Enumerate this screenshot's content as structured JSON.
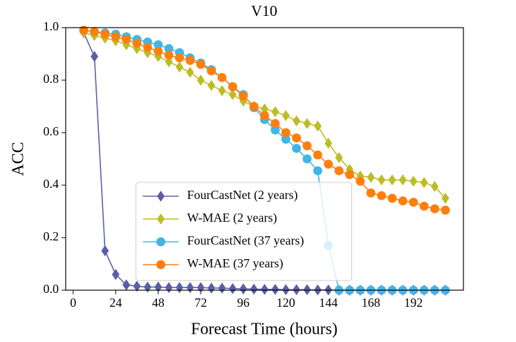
{
  "chart_data": {
    "type": "line",
    "title": "V10",
    "xlabel": "Forecast Time (hours)",
    "ylabel": "ACC",
    "x": [
      6,
      12,
      18,
      24,
      30,
      36,
      42,
      48,
      54,
      60,
      66,
      72,
      78,
      84,
      90,
      96,
      102,
      108,
      114,
      120,
      126,
      132,
      138,
      144,
      150,
      156,
      162,
      168,
      174,
      180,
      186,
      192,
      198,
      204,
      210
    ],
    "series": [
      {
        "name": "FourCastNet (2 years)",
        "color": "#5b5ea6",
        "marker": "diamond",
        "values": [
          0.98,
          0.89,
          0.15,
          0.06,
          0.02,
          0.015,
          0.012,
          0.012,
          0.01,
          0.01,
          0.01,
          0.01,
          0.008,
          0.008,
          0.006,
          0.005,
          0.004,
          0.003,
          0.003,
          0.002,
          0.002,
          0.002,
          0.001,
          0.001,
          0,
          0,
          0,
          0,
          0,
          0,
          0,
          0,
          0,
          0,
          0
        ]
      },
      {
        "name": "W-MAE (2 years)",
        "color": "#bcbd22",
        "marker": "diamond",
        "values": [
          0.98,
          0.97,
          0.96,
          0.95,
          0.935,
          0.92,
          0.905,
          0.89,
          0.87,
          0.85,
          0.83,
          0.8,
          0.78,
          0.76,
          0.745,
          0.72,
          0.7,
          0.69,
          0.68,
          0.665,
          0.645,
          0.635,
          0.625,
          0.56,
          0.505,
          0.46,
          0.435,
          0.43,
          0.42,
          0.42,
          0.42,
          0.415,
          0.41,
          0.395,
          0.35
        ]
      },
      {
        "name": "FourCastNet (37 years)",
        "color": "#41b6e6",
        "marker": "circle",
        "values": [
          0.99,
          0.985,
          0.98,
          0.975,
          0.965,
          0.955,
          0.945,
          0.935,
          0.92,
          0.905,
          0.885,
          0.865,
          0.84,
          0.81,
          0.775,
          0.745,
          0.695,
          0.65,
          0.61,
          0.575,
          0.54,
          0.5,
          0.455,
          0.17,
          0,
          0,
          0,
          0,
          0,
          0,
          0,
          0,
          0,
          0,
          0
        ]
      },
      {
        "name": "W-MAE (37 years)",
        "color": "#ff7f0e",
        "marker": "circle",
        "values": [
          0.99,
          0.985,
          0.975,
          0.965,
          0.955,
          0.94,
          0.925,
          0.91,
          0.895,
          0.885,
          0.875,
          0.86,
          0.835,
          0.81,
          0.775,
          0.74,
          0.7,
          0.665,
          0.635,
          0.6,
          0.58,
          0.55,
          0.515,
          0.48,
          0.455,
          0.44,
          0.415,
          0.37,
          0.36,
          0.35,
          0.34,
          0.335,
          0.32,
          0.31,
          0.305
        ]
      }
    ],
    "xlim": [
      -4.2,
      220.2
    ],
    "xticks": [
      0,
      24,
      48,
      72,
      96,
      120,
      144,
      168,
      192
    ],
    "ylim": [
      0,
      1
    ],
    "yticks": [
      {
        "value": 0,
        "label": "0.0"
      },
      0.2,
      0.4,
      0.6,
      0.8,
      {
        "value": 1,
        "label": "1.0"
      }
    ],
    "legend": "lower center"
  }
}
